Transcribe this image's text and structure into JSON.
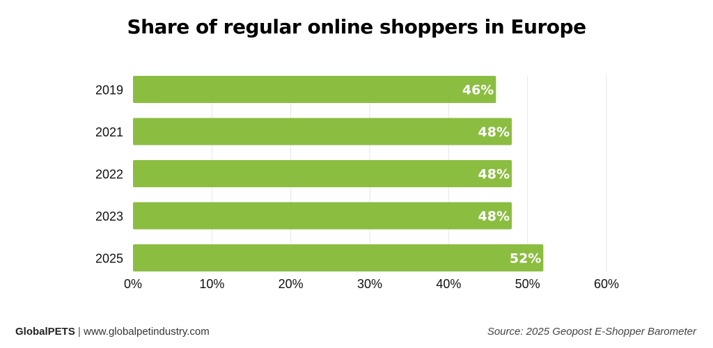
{
  "chart_data": {
    "type": "bar",
    "orientation": "horizontal",
    "title": "Share of regular online shoppers in Europe",
    "categories": [
      "2019",
      "2021",
      "2022",
      "2023",
      "2025"
    ],
    "values": [
      46,
      48,
      48,
      48,
      52
    ],
    "value_labels": [
      "46%",
      "48%",
      "48%",
      "48%",
      "52%"
    ],
    "xlim": [
      0,
      60
    ],
    "x_ticks": [
      0,
      10,
      20,
      30,
      40,
      50,
      60
    ],
    "x_tick_labels": [
      "0%",
      "10%",
      "20%",
      "30%",
      "40%",
      "50%",
      "60%"
    ],
    "grid": true,
    "bar_color": "#8bbd41",
    "label_color": "#ffffff",
    "grid_color": "#e6e6e6"
  },
  "footer": {
    "brand": "GlobalPETS",
    "separator": "|",
    "website": "www.globalpetindustry.com",
    "source": "Source: 2025 Geopost E-Shopper Barometer"
  }
}
